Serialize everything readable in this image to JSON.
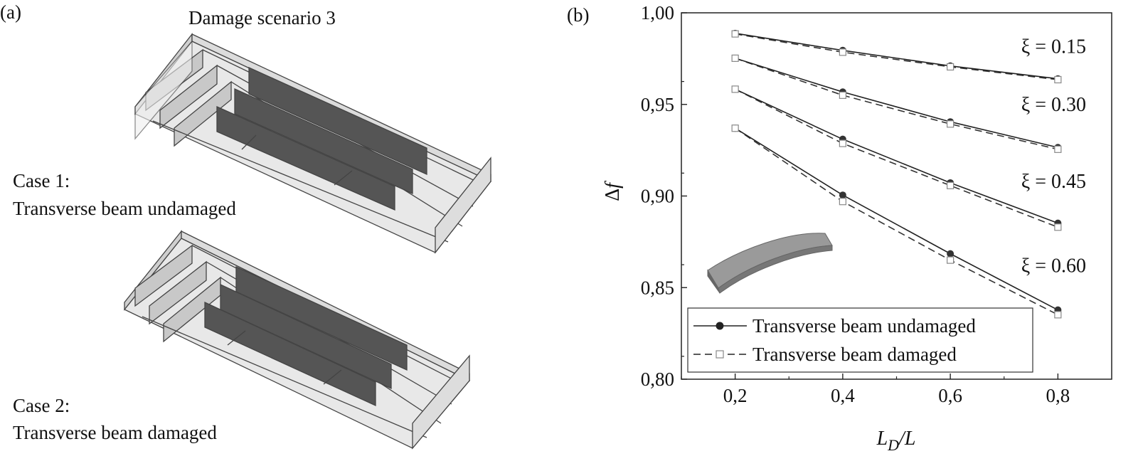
{
  "panel_a": {
    "tag": "(a)",
    "title": "Damage scenario 3",
    "case1_label": "Case 1:",
    "case1_desc": "Transverse beam undamaged",
    "case2_label": "Case 2:",
    "case2_desc": "Transverse beam damaged"
  },
  "chart_data": {
    "tag": "(b)",
    "type": "line",
    "xlabel": "L_D/L",
    "ylabel": "Δf",
    "xlim": [
      0.1,
      0.9
    ],
    "ylim": [
      0.8,
      1.0
    ],
    "xticks": [
      0.2,
      0.4,
      0.6,
      0.8
    ],
    "xtick_labels": [
      "0,2",
      "0,4",
      "0,6",
      "0,8"
    ],
    "yticks": [
      0.8,
      0.85,
      0.9,
      0.95,
      1.0
    ],
    "ytick_labels": [
      "0,80",
      "0,85",
      "0,90",
      "0,95",
      "1,00"
    ],
    "x": [
      0.2,
      0.4,
      0.6,
      0.8
    ],
    "groups": [
      {
        "label": "ξ = 0.15",
        "undamaged": [
          0.9888,
          0.9795,
          0.971,
          0.964
        ],
        "damaged": [
          0.9885,
          0.9785,
          0.9705,
          0.9635
        ]
      },
      {
        "label": "ξ = 0.30",
        "undamaged": [
          0.9752,
          0.9568,
          0.9405,
          0.9265
        ],
        "damaged": [
          0.9752,
          0.955,
          0.9393,
          0.9255
        ]
      },
      {
        "label": "ξ = 0.45",
        "undamaged": [
          0.9583,
          0.931,
          0.9072,
          0.8852
        ],
        "damaged": [
          0.9583,
          0.9287,
          0.9057,
          0.883
        ]
      },
      {
        "label": "ξ = 0.60",
        "undamaged": [
          0.937,
          0.9005,
          0.8685,
          0.8378
        ],
        "damaged": [
          0.937,
          0.897,
          0.865,
          0.8352
        ]
      }
    ],
    "series_styles": [
      {
        "name": "Transverse beam undamaged",
        "line": "solid",
        "marker": "filled-circle"
      },
      {
        "name": "Transverse beam damaged",
        "line": "dashed",
        "marker": "open-square"
      }
    ],
    "legend_position": "bottom-left",
    "grid": false
  }
}
